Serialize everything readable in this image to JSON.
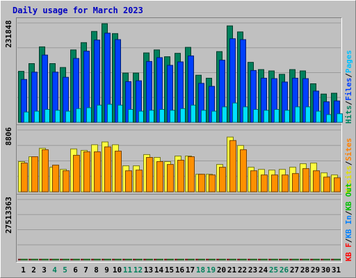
{
  "chart_data": {
    "type": "bar",
    "title": "Daily usage for March 2023",
    "categories": [
      "1",
      "2",
      "3",
      "4",
      "5",
      "6",
      "7",
      "8",
      "9",
      "10",
      "11",
      "12",
      "13",
      "14",
      "15",
      "16",
      "17",
      "18",
      "19",
      "20",
      "21",
      "22",
      "23",
      "24",
      "25",
      "26",
      "27",
      "28",
      "29",
      "30",
      "31"
    ],
    "weekend_days": [
      "4",
      "5",
      "11",
      "12",
      "18",
      "19",
      "25",
      "26"
    ],
    "panels": [
      {
        "name": "requests",
        "scale_label": "231848",
        "scale_max": 231848,
        "side_legend": [
          {
            "text": "Hits",
            "color": "#00805c"
          },
          {
            "text": "Files",
            "color": "#0040ff"
          },
          {
            "text": "Pages",
            "color": "#00c0ff"
          }
        ],
        "series": [
          {
            "name": "Hits",
            "color": "#00805c",
            "values": [
              119000,
              137000,
              176000,
              137000,
              128000,
              169000,
              186000,
              212000,
              230000,
              207000,
              115000,
              115000,
              162000,
              169000,
              153000,
              161000,
              175000,
              110000,
              103000,
              165000,
              225000,
              211000,
              140000,
              123000,
              120000,
              112000,
              123000,
              120000,
              90000,
              66000,
              68000
            ]
          },
          {
            "name": "Files",
            "color": "#0040ff",
            "values": [
              100000,
              117000,
              157000,
              117000,
              105000,
              149000,
              166000,
              192000,
              208000,
              193000,
              95000,
              97000,
              142000,
              151000,
              133000,
              141000,
              155000,
              91000,
              84000,
              145000,
              195000,
              193000,
              121000,
              103000,
              102000,
              94000,
              103000,
              102000,
              73000,
              48000,
              50000
            ]
          },
          {
            "name": "Pages",
            "color": "#00e0ff",
            "values": [
              24000,
              26000,
              30000,
              28000,
              26000,
              32000,
              34000,
              40000,
              42000,
              40000,
              30000,
              26000,
              28000,
              30000,
              28000,
              32000,
              40000,
              28000,
              26000,
              36000,
              45000,
              36000,
              30000,
              28000,
              30000,
              28000,
              36000,
              36000,
              26000,
              18000,
              20000
            ]
          }
        ]
      },
      {
        "name": "visits",
        "scale_label": "8806",
        "scale_max": 8806,
        "side_legend": [
          {
            "text": "Visits",
            "color": "#e0e000"
          },
          {
            "text": "Sites",
            "color": "#ff8000"
          }
        ],
        "series": [
          {
            "name": "Visits",
            "color": "#ffff40",
            "values": [
              4300,
              5000,
              6200,
              3500,
              3200,
              6100,
              5900,
              6700,
              7100,
              6700,
              3700,
              3700,
              5300,
              4900,
              4300,
              5100,
              5100,
              2500,
              2500,
              3900,
              7800,
              6600,
              3500,
              3200,
              3100,
              3200,
              3500,
              4000,
              4100,
              2700,
              2400
            ]
          },
          {
            "name": "Sites",
            "color": "#ff9000",
            "values": [
              4100,
              5000,
              6000,
              3800,
              3000,
              5200,
              5700,
              5700,
              6400,
              5800,
              3000,
              3100,
              4900,
              4300,
              3900,
              4500,
              5000,
              2500,
              2400,
              3500,
              7300,
              6000,
              3000,
              2400,
              2400,
              2400,
              2600,
              3300,
              3000,
              2100,
              2000
            ]
          }
        ]
      },
      {
        "name": "kbytes",
        "scale_label": "27513363",
        "scale_max": 27513363,
        "side_legend": [
          {
            "text": "KB F",
            "color": "#ff0000"
          },
          {
            "text": "KB In",
            "color": "#0080ff"
          },
          {
            "text": "KB Out",
            "color": "#00c000"
          }
        ],
        "series": [
          {
            "name": "KB F",
            "color": "#ee1111",
            "values": [
              6500,
              13000,
              5000,
              1500,
              4500,
              9000,
              17000,
              19000,
              18000,
              27000,
              6000,
              5000,
              8000,
              5500,
              14000,
              15000,
              18000,
              1500,
              1500,
              6000,
              12000,
              15000,
              6000,
              3500,
              1500,
              6000,
              7500,
              6000,
              6000,
              4000,
              2200
            ]
          },
          {
            "name": "KB Out",
            "color": "#22cc22",
            "values": [
              3000,
              8000,
              5000,
              2000,
              2500,
              5600,
              6800,
              7300,
              7800,
              7500,
              4000,
              3500,
              4500,
              4700,
              4200,
              6000,
              6000,
              2000,
              1700,
              5000,
              7200,
              6700,
              4800,
              3200,
              2500,
              3300,
              4800,
              4500,
              4800,
              2300,
              3000
            ]
          }
        ]
      }
    ]
  }
}
